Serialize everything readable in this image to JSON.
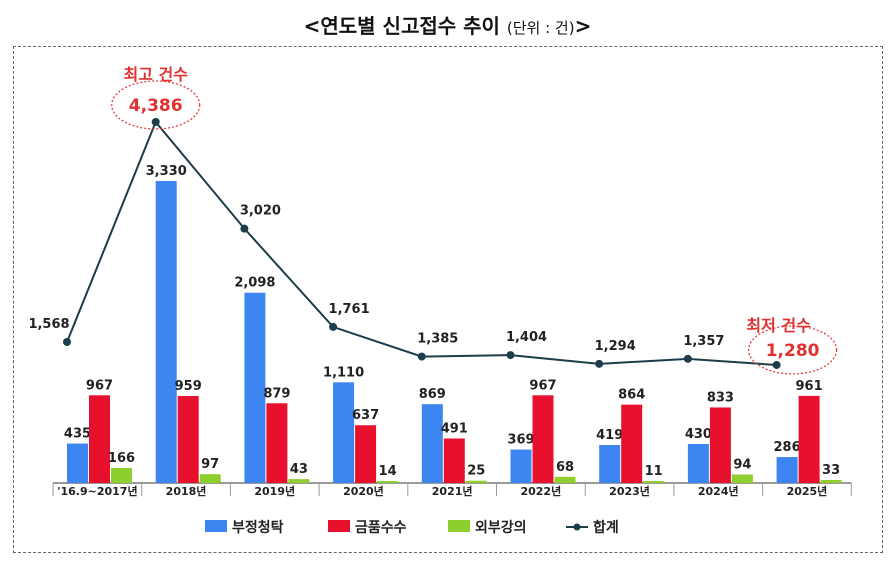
{
  "title": {
    "main": "<연도별 신고접수 추이",
    "unit": "(단위 : 건)",
    "close": ">"
  },
  "annotations": {
    "max_label": "최고 건수",
    "min_label": "최저 건수"
  },
  "colors": {
    "부정청탁": "#3d85f0",
    "금품수수": "#e8112d",
    "외부강의": "#8ccf2e",
    "합계": "#1c3d4a",
    "annotation": "#e03030"
  },
  "chart_data": {
    "type": "bar",
    "categories": [
      "'16.9~2017년",
      "2018년",
      "2019년",
      "2020년",
      "2021년",
      "2022년",
      "2023년",
      "2024년",
      "2025년"
    ],
    "series": [
      {
        "name": "부정청탁",
        "type": "bar",
        "values": [
          435,
          3330,
          2098,
          1110,
          869,
          369,
          419,
          430,
          286
        ]
      },
      {
        "name": "금품수수",
        "type": "bar",
        "values": [
          967,
          959,
          879,
          637,
          491,
          967,
          864,
          833,
          961
        ]
      },
      {
        "name": "외부강의",
        "type": "bar",
        "values": [
          166,
          97,
          43,
          14,
          25,
          68,
          11,
          94,
          33
        ]
      },
      {
        "name": "합계",
        "type": "line",
        "values": [
          1568,
          4386,
          3020,
          1761,
          1385,
          1404,
          1294,
          1357,
          1280
        ]
      }
    ],
    "legend": [
      "부정청탁",
      "금품수수",
      "외부강의",
      "합계"
    ],
    "legend_position": "bottom",
    "grid": false
  }
}
